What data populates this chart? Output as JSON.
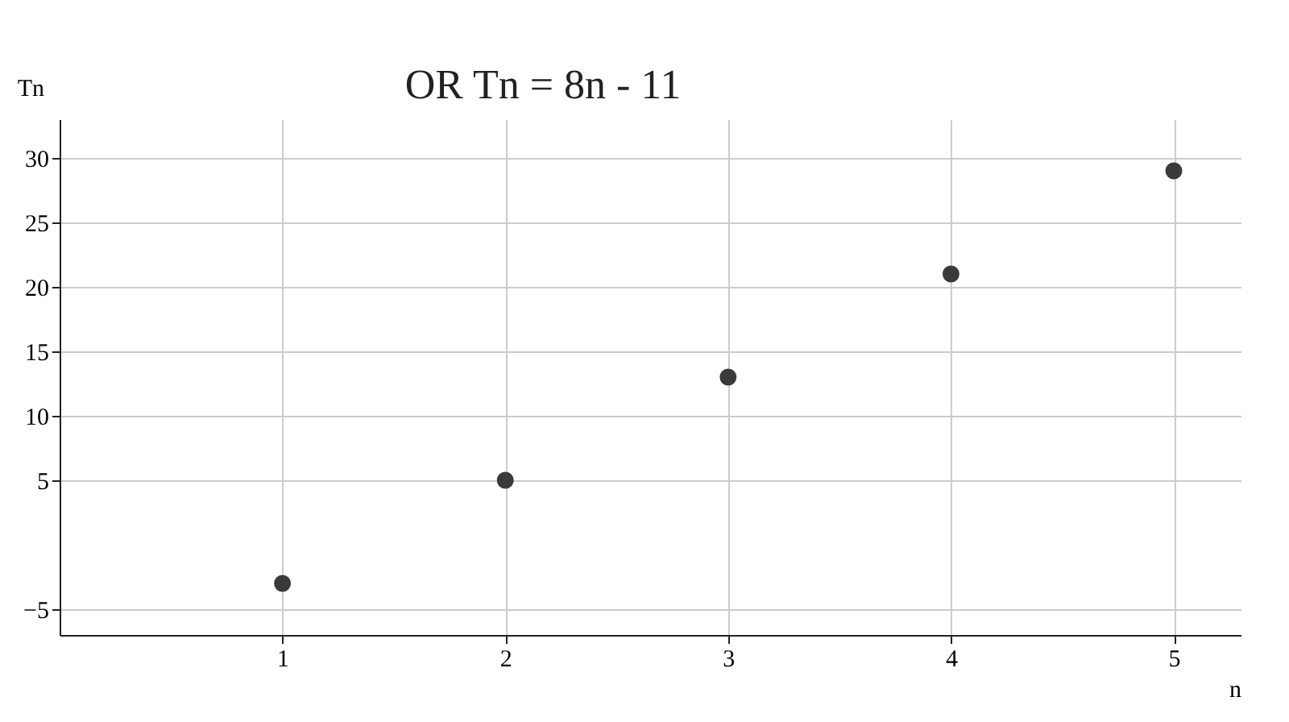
{
  "chart_data": {
    "type": "scatter",
    "x": [
      1,
      2,
      3,
      4,
      5
    ],
    "series": [
      {
        "color": "#3a3a3a",
        "values": [
          -3,
          5,
          13,
          21,
          29
        ]
      }
    ],
    "xlabel": "n",
    "ylabel": "Tn",
    "annotations": [
      "OR Tn = 8n - 11"
    ],
    "xlim": [
      0,
      5.3
    ],
    "ylim": [
      -7,
      33
    ],
    "xticks": [
      1,
      2,
      3,
      4,
      5
    ],
    "yticks": [
      -5,
      5,
      10,
      15,
      20,
      25,
      30
    ],
    "grid": true,
    "marker": "circle"
  }
}
